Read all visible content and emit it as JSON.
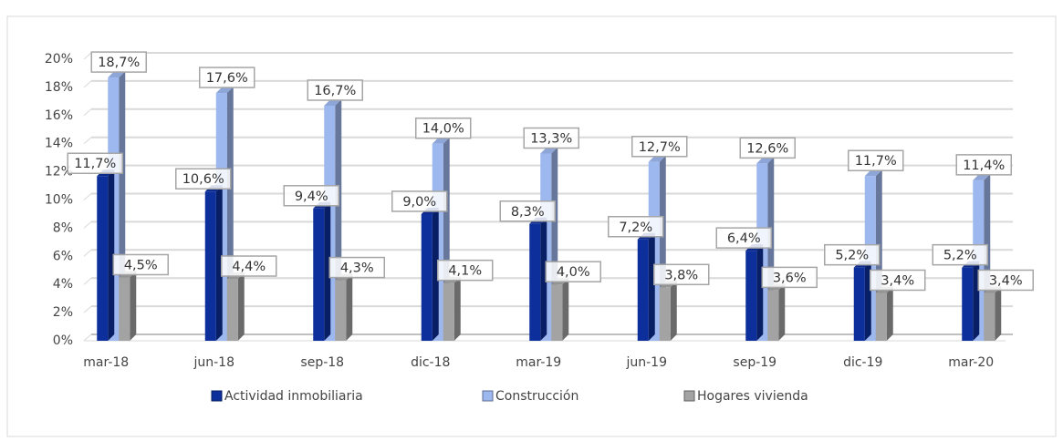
{
  "chart_data": {
    "type": "bar3d",
    "categories": [
      "mar-18",
      "jun-18",
      "sep-18",
      "dic-18",
      "mar-19",
      "jun-19",
      "sep-19",
      "dic-19",
      "mar-20"
    ],
    "series": [
      {
        "name": "Actividad inmobiliaria",
        "color": "#0d2f9c",
        "values": [
          11.7,
          10.6,
          9.4,
          9.0,
          8.3,
          7.2,
          6.4,
          5.2,
          5.2
        ],
        "value_labels": [
          "11,7%",
          "10,6%",
          "9,4%",
          "9,0%",
          "8,3%",
          "7,2%",
          "6,4%",
          "5,2%",
          "5,2%"
        ]
      },
      {
        "name": "Construcción",
        "color": "#9db7ef",
        "values": [
          18.7,
          17.6,
          16.7,
          14.0,
          13.3,
          12.7,
          12.6,
          11.7,
          11.4
        ],
        "value_labels": [
          "18,7%",
          "17,6%",
          "16,7%",
          "14,0%",
          "13,3%",
          "12,7%",
          "12,6%",
          "11,7%",
          "11,4%"
        ]
      },
      {
        "name": "Hogares vivienda",
        "color": "#a3a3a3",
        "values": [
          4.5,
          4.4,
          4.3,
          4.1,
          4.0,
          3.8,
          3.6,
          3.4,
          3.4
        ],
        "value_labels": [
          "4,5%",
          "4,4%",
          "4,3%",
          "4,1%",
          "4,0%",
          "3,8%",
          "3,6%",
          "3,4%",
          "3,4%"
        ]
      }
    ],
    "ylim": [
      0,
      20
    ],
    "yticks": [
      {
        "value": 0,
        "label": "0%"
      },
      {
        "value": 2,
        "label": "2%"
      },
      {
        "value": 4,
        "label": "4%"
      },
      {
        "value": 6,
        "label": "6%"
      },
      {
        "value": 8,
        "label": "8%"
      },
      {
        "value": 10,
        "label": "10%"
      },
      {
        "value": 12,
        "label": "12%"
      },
      {
        "value": 14,
        "label": "14%"
      },
      {
        "value": 16,
        "label": "16%"
      },
      {
        "value": 18,
        "label": "18%"
      },
      {
        "value": 20,
        "label": "20%"
      }
    ],
    "grid": true,
    "legend": "bottom"
  }
}
